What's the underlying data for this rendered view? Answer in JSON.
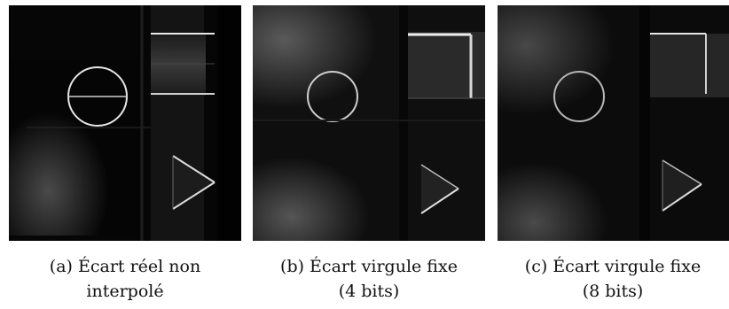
{
  "figure": {
    "subfigures": [
      {
        "id": "a",
        "caption_line1": "(a) Écart réel non",
        "caption_line2": "interpolé"
      },
      {
        "id": "b",
        "caption_line1": "(b) Écart virgule fixe",
        "caption_line2": "(4 bits)"
      },
      {
        "id": "c",
        "caption_line1": "(c) Écart virgule fixe",
        "caption_line2": "(8 bits)"
      }
    ]
  }
}
